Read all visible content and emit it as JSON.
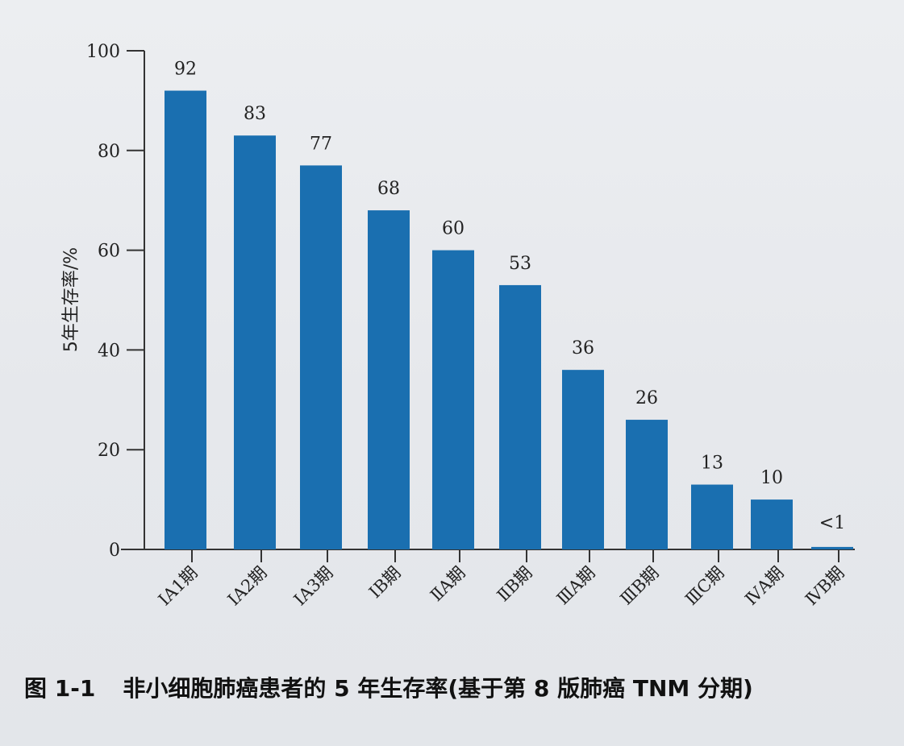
{
  "chart_data": {
    "type": "bar",
    "ylabel": "5年生存率/%",
    "ylim": [
      0,
      100
    ],
    "yticks": [
      "0",
      "20",
      "40",
      "60",
      "80",
      "100"
    ],
    "categories": [
      "ⅠA1期",
      "ⅠA2期",
      "ⅠA3期",
      "ⅠB期",
      "ⅡA期",
      "ⅡB期",
      "ⅢA期",
      "ⅢB期",
      "ⅢC期",
      "ⅣA期",
      "ⅣB期"
    ],
    "values": [
      92,
      83,
      77,
      68,
      60,
      53,
      36,
      26,
      13,
      10,
      0.5
    ],
    "value_labels": [
      "92",
      "83",
      "77",
      "68",
      "60",
      "53",
      "36",
      "26",
      "13",
      "10",
      "<1"
    ],
    "bar_color": "#1a6fb0",
    "grid": false
  },
  "caption": {
    "number": "图 1-1",
    "text": "非小细胞肺癌患者的 5 年生存率(基于第 8 版肺癌 TNM 分期)"
  }
}
